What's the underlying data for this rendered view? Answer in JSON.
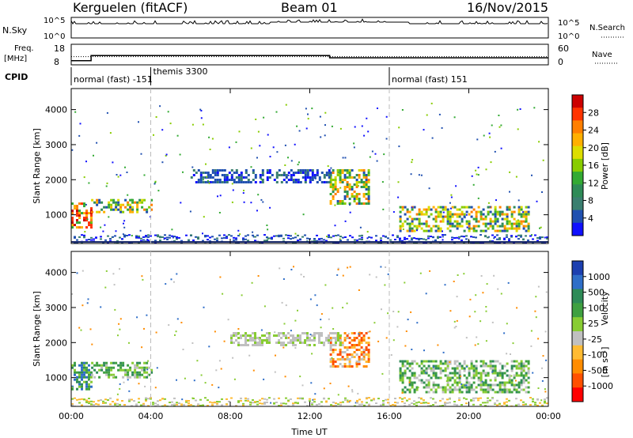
{
  "header": {
    "station": "Kerguelen (fitACF)",
    "beam": "Beam 01",
    "date": "16/Nov/2015"
  },
  "strips": {
    "nsky_label": "N.Sky",
    "nsky_ticks": [
      "10^5",
      "10^0"
    ],
    "nsky_right_ticks": [
      "10^5",
      "10^0"
    ],
    "nsearch_label": "N.Search",
    "freq_label": "Freq.",
    "freq_unit": "[MHz]",
    "freq_ticks": [
      "18",
      "8"
    ],
    "nave_ticks": [
      "60",
      "0"
    ],
    "nave_label": "Nave",
    "cpid_label": "CPID",
    "cpid_segments": [
      {
        "label": "normal (fast) -151",
        "start_hour": 0
      },
      {
        "label": "themis 3300",
        "start_hour": 4
      },
      {
        "label": "normal (fast) 151",
        "start_hour": 16
      }
    ]
  },
  "chart_data": [
    {
      "type": "heatmap",
      "panel": "power",
      "ylabel": "Slant Range [km]",
      "yticks": [
        1000,
        2000,
        3000,
        4000
      ],
      "ylim": [
        180,
        4600
      ],
      "xlim": [
        0,
        24
      ],
      "colorbar": {
        "label": "Power [dB]",
        "ticks": [
          "28",
          "24",
          "20",
          "16",
          "12",
          "8",
          "4"
        ],
        "colors": [
          "#cc0000",
          "#ff3300",
          "#ff7f00",
          "#ffb000",
          "#dddd00",
          "#88cc00",
          "#33aa33",
          "#2e8b57",
          "#3a7f70",
          "#2050b0",
          "#1010ff"
        ]
      },
      "regions": [
        {
          "x": [
            0.0,
            1.0
          ],
          "y": [
            650,
            1350
          ],
          "level": "high"
        },
        {
          "x": [
            1.0,
            4.0
          ],
          "y": [
            1050,
            1450
          ],
          "level": "mid"
        },
        {
          "x": [
            13.0,
            15.0
          ],
          "y": [
            1300,
            2300
          ],
          "level": "mid"
        },
        {
          "x": [
            16.5,
            23.0
          ],
          "y": [
            550,
            1250
          ],
          "level": "mid"
        },
        {
          "x": [
            6.0,
            13.0
          ],
          "y": [
            1950,
            2300
          ],
          "level": "low"
        }
      ]
    },
    {
      "type": "heatmap",
      "panel": "velocity",
      "ylabel": "Slant Range [km]",
      "xlabel": "Time UT",
      "xticks": [
        "00:00",
        "04:00",
        "08:00",
        "12:00",
        "16:00",
        "20:00",
        "00:00"
      ],
      "yticks": [
        1000,
        2000,
        3000,
        4000
      ],
      "ylim": [
        180,
        4600
      ],
      "xlim": [
        0,
        24
      ],
      "colorbar": {
        "label": "Velocity",
        "unit": "[m s⁻¹]",
        "ticks": [
          "1000",
          "500",
          "100",
          "25",
          "-25",
          "-100",
          "-500",
          "-1000"
        ],
        "colors": [
          "#1c3fb0",
          "#2f6ec8",
          "#2e8b57",
          "#3fa040",
          "#88cc33",
          "#c0c0c0",
          "#ffbb33",
          "#ff8c00",
          "#ff5000",
          "#ff0000"
        ]
      },
      "regions": [
        {
          "x": [
            0.0,
            1.0
          ],
          "y": [
            650,
            1450
          ],
          "level": "toward"
        },
        {
          "x": [
            1.0,
            4.0
          ],
          "y": [
            1000,
            1450
          ],
          "level": "slow-toward"
        },
        {
          "x": [
            13.0,
            15.0
          ],
          "y": [
            1300,
            2300
          ],
          "level": "away"
        },
        {
          "x": [
            16.5,
            23.0
          ],
          "y": [
            600,
            1500
          ],
          "level": "slow-toward"
        },
        {
          "x": [
            8.0,
            13.5
          ],
          "y": [
            1950,
            2300
          ],
          "level": "near-zero"
        }
      ]
    }
  ],
  "series_strips": {
    "freq_mhz": [
      {
        "t0": 0,
        "t1": 1.0,
        "v": 10.0
      },
      {
        "t0": 1.0,
        "t1": 13.0,
        "v": 12.5
      },
      {
        "t0": 13.0,
        "t1": 24,
        "v": 11.4
      }
    ],
    "nave_dotted": 12.0
  }
}
